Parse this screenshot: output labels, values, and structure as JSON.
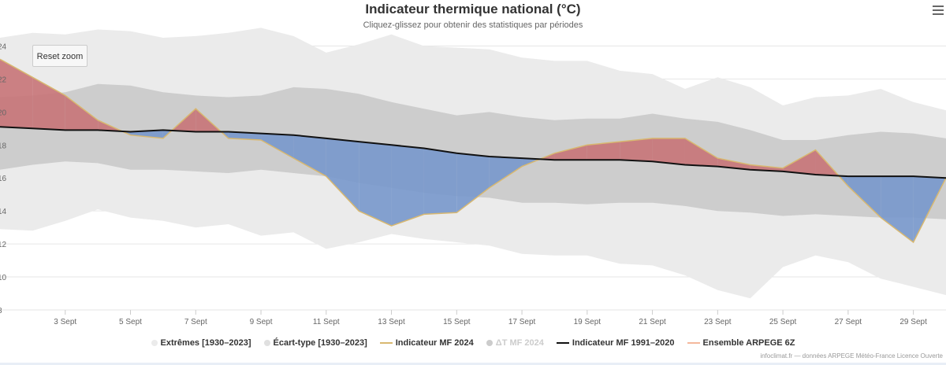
{
  "title": "Indicateur thermique national (°C)",
  "subtitle": "Cliquez-glissez pour obtenir des statistiques par périodes",
  "reset_zoom_label": "Reset zoom",
  "menu_icon": "hamburger-menu-icon",
  "credits": "infoclimat.fr — données ARPEGE Météo-France Licence Ouverte",
  "colors": {
    "extremes": "#ebebeb",
    "ecart_type": "#c8c8c8",
    "warm": "#c87478",
    "cold": "#7898cc",
    "indicator_2024": "#d8b870",
    "normal": "#111111",
    "arpege": "#f4b89c"
  },
  "legend": [
    {
      "label": "Extrêmes [1930–2023]",
      "symbol": "circle",
      "color": "#ebebeb",
      "visible": true
    },
    {
      "label": "Écart-type [1930–2023]",
      "symbol": "circle",
      "color": "#e0e0e0",
      "visible": true
    },
    {
      "label": "Indicateur MF 2024",
      "symbol": "line",
      "color": "#d8b870",
      "visible": true
    },
    {
      "label": "ΔT MF 2024",
      "symbol": "circle",
      "color": "#cccccc",
      "visible": false
    },
    {
      "label": "Indicateur MF 1991–2020",
      "symbol": "line",
      "color": "#111111",
      "visible": true
    },
    {
      "label": "Ensemble ARPEGE 6Z",
      "symbol": "line",
      "color": "#f4b89c",
      "visible": true
    }
  ],
  "chart_data": {
    "type": "area",
    "title": "Indicateur thermique national (°C)",
    "x_unit": "day of September 2024",
    "xlim": [
      1,
      30
    ],
    "ylim": [
      8,
      24.5
    ],
    "yticks": [
      8,
      10,
      12,
      14,
      16,
      18,
      20,
      22,
      24
    ],
    "ytick_labels": [
      "8",
      "10",
      "12",
      "14",
      "16",
      "18",
      "20",
      "22",
      "24"
    ],
    "xticks": [
      3,
      5,
      7,
      9,
      11,
      13,
      15,
      17,
      19,
      21,
      23,
      25,
      27,
      29
    ],
    "xtick_labels": [
      "3 Sept",
      "5 Sept",
      "7 Sept",
      "9 Sept",
      "11 Sept",
      "13 Sept",
      "15 Sept",
      "17 Sept",
      "19 Sept",
      "21 Sept",
      "23 Sept",
      "25 Sept",
      "27 Sept",
      "29 Sept"
    ],
    "grid": true,
    "legend_position": "bottom-center",
    "x": [
      1,
      2,
      3,
      4,
      5,
      6,
      7,
      8,
      9,
      10,
      11,
      12,
      13,
      14,
      15,
      16,
      17,
      18,
      19,
      20,
      21,
      22,
      23,
      24,
      25,
      26,
      27,
      28,
      29,
      30
    ],
    "series": [
      {
        "name": "Extrêmes [1930–2023] max",
        "values": [
          24.5,
          24.8,
          24.7,
          25,
          24.9,
          24.5,
          24.6,
          24.8,
          25.1,
          24.6,
          23.6,
          24.1,
          24.7,
          24,
          23.9,
          23.8,
          23.3,
          23.1,
          23.1,
          22.5,
          22.3,
          21.4,
          22.1,
          21.5,
          20.4,
          20.9,
          21,
          21.4,
          20.6,
          20.1
        ]
      },
      {
        "name": "Extrêmes [1930–2023] min",
        "values": [
          12.9,
          12.8,
          13.4,
          14.1,
          13.6,
          13.4,
          13,
          13.2,
          12.5,
          12.7,
          11.7,
          12.1,
          12.6,
          12.3,
          12.1,
          11.9,
          11.4,
          11.3,
          11.3,
          10.8,
          10.7,
          10.1,
          9.2,
          8.7,
          10.6,
          11.3,
          10.9,
          9.9,
          9.4,
          8.9
        ]
      },
      {
        "name": "Écart-type [1930–2023] max",
        "values": [
          20.9,
          21,
          21.2,
          21.7,
          21.6,
          21.2,
          21,
          20.9,
          21,
          21.5,
          21.4,
          21.1,
          20.6,
          20.2,
          19.8,
          20,
          19.7,
          19.5,
          19.6,
          19.6,
          19.9,
          19.6,
          19.4,
          18.9,
          18.3,
          18.3,
          18.6,
          18.8,
          18.7,
          18.4
        ]
      },
      {
        "name": "Écart-type [1930–2023] min",
        "values": [
          16.5,
          16.8,
          17,
          16.9,
          16.5,
          16.5,
          16.4,
          16.3,
          16.5,
          16.3,
          16.1,
          15.7,
          15.4,
          15.1,
          14.9,
          14.8,
          14.5,
          14.5,
          14.4,
          14.5,
          14.5,
          14.3,
          14,
          13.9,
          13.7,
          13.8,
          13.7,
          13.6,
          13.6,
          13.5
        ]
      },
      {
        "name": "Indicateur MF 2024",
        "values": [
          23.2,
          22.1,
          21,
          19.5,
          18.6,
          18.4,
          20.2,
          18.4,
          18.3,
          17.2,
          16.1,
          14,
          13.1,
          13.8,
          13.9,
          15.4,
          16.7,
          17.5,
          18,
          18.2,
          18.4,
          18.4,
          17.2,
          16.8,
          16.6,
          17.7,
          15.5,
          13.6,
          12.1,
          16
        ]
      },
      {
        "name": "Indicateur MF 1991–2020",
        "values": [
          19.1,
          19,
          18.9,
          18.9,
          18.8,
          18.9,
          18.8,
          18.8,
          18.7,
          18.6,
          18.4,
          18.2,
          18,
          17.8,
          17.5,
          17.3,
          17.2,
          17.1,
          17.1,
          17.1,
          17,
          16.8,
          16.7,
          16.5,
          16.4,
          16.2,
          16.1,
          16.1,
          16.1,
          16
        ]
      }
    ]
  }
}
